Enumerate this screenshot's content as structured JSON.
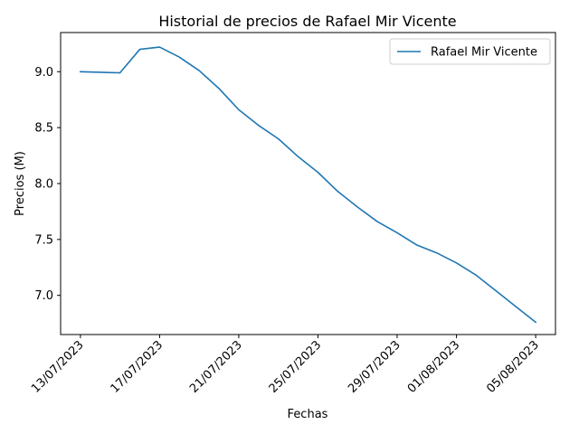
{
  "chart_data": {
    "type": "line",
    "title": "Historial de precios de Rafael Mir Vicente",
    "xlabel": "Fechas",
    "ylabel": "Precios (M)",
    "x_ticks": [
      "13/07/2023",
      "17/07/2023",
      "21/07/2023",
      "25/07/2023",
      "29/07/2023",
      "01/08/2023",
      "05/08/2023"
    ],
    "y_ticks": [
      "7.0",
      "7.5",
      "8.0",
      "8.5",
      "9.0"
    ],
    "ylim": [
      6.65,
      9.35
    ],
    "xlim": [
      "2023-07-12",
      "2023-08-06"
    ],
    "legend_position": "upper right",
    "grid": false,
    "series": [
      {
        "name": "Rafael Mir Vicente",
        "color": "#1f77b4",
        "points": [
          {
            "date": "2023-07-13",
            "value": 9.0
          },
          {
            "date": "2023-07-15",
            "value": 8.99
          },
          {
            "date": "2023-07-16",
            "value": 9.2
          },
          {
            "date": "2023-07-17",
            "value": 9.22
          },
          {
            "date": "2023-07-18",
            "value": 9.13
          },
          {
            "date": "2023-07-19",
            "value": 9.01
          },
          {
            "date": "2023-07-20",
            "value": 8.85
          },
          {
            "date": "2023-07-21",
            "value": 8.66
          },
          {
            "date": "2023-07-22",
            "value": 8.52
          },
          {
            "date": "2023-07-23",
            "value": 8.4
          },
          {
            "date": "2023-07-24",
            "value": 8.24
          },
          {
            "date": "2023-07-25",
            "value": 8.1
          },
          {
            "date": "2023-07-26",
            "value": 7.93
          },
          {
            "date": "2023-07-27",
            "value": 7.79
          },
          {
            "date": "2023-07-28",
            "value": 7.66
          },
          {
            "date": "2023-07-29",
            "value": 7.56
          },
          {
            "date": "2023-07-30",
            "value": 7.45
          },
          {
            "date": "2023-07-31",
            "value": 7.38
          },
          {
            "date": "2023-08-01",
            "value": 7.29
          },
          {
            "date": "2023-08-02",
            "value": 7.18
          },
          {
            "date": "2023-08-03",
            "value": 7.04
          },
          {
            "date": "2023-08-04",
            "value": 6.9
          },
          {
            "date": "2023-08-05",
            "value": 6.76
          }
        ]
      }
    ]
  }
}
